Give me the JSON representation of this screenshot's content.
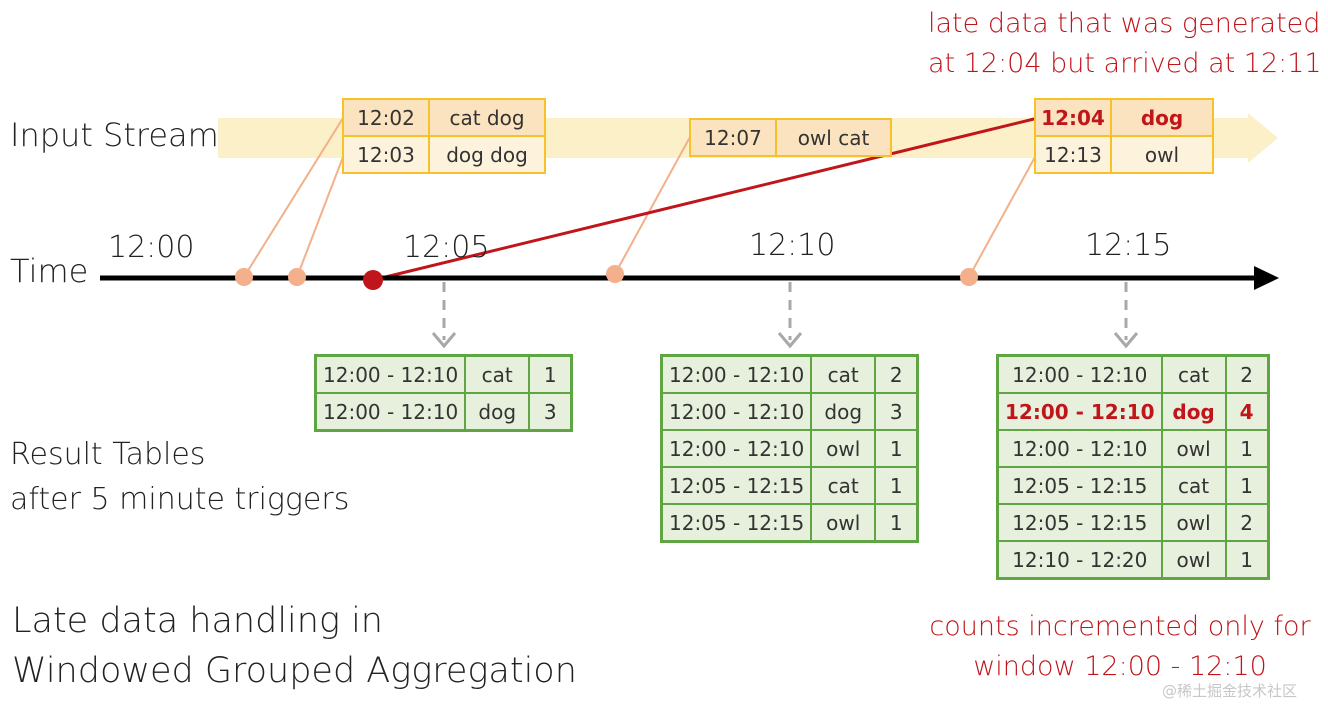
{
  "labels": {
    "input_stream": "Input Stream",
    "time": "Time",
    "result_line1": "Result Tables",
    "result_line2": "after 5 minute triggers",
    "title_line1": "Late data handling in",
    "title_line2": "Windowed Grouped Aggregation"
  },
  "annotations": {
    "late_line1": "late data that was generated",
    "late_line2": "at 12:04 but arrived at 12:11",
    "counts_line1": "counts incremented only for",
    "counts_line2": "window 12:00 - 12:10"
  },
  "timeline": {
    "ticks": [
      "12:00",
      "12:05",
      "12:10",
      "12:15"
    ]
  },
  "events": {
    "batch1": [
      {
        "time": "12:02",
        "words": "cat dog"
      },
      {
        "time": "12:03",
        "words": "dog dog"
      }
    ],
    "batch2": [
      {
        "time": "12:07",
        "words": "owl cat"
      }
    ],
    "batch3": [
      {
        "time": "12:04",
        "words": "dog",
        "late": true
      },
      {
        "time": "12:13",
        "words": "owl"
      }
    ]
  },
  "results": {
    "t1205": [
      [
        "12:00 - 12:10",
        "cat",
        "1"
      ],
      [
        "12:00 - 12:10",
        "dog",
        "3"
      ]
    ],
    "t1210": [
      [
        "12:00 - 12:10",
        "cat",
        "2"
      ],
      [
        "12:00 - 12:10",
        "dog",
        "3"
      ],
      [
        "12:00 - 12:10",
        "owl",
        "1"
      ],
      [
        "12:05 - 12:15",
        "cat",
        "1"
      ],
      [
        "12:05 - 12:15",
        "owl",
        "1"
      ]
    ],
    "t1215": [
      [
        "12:00 - 12:10",
        "cat",
        "2"
      ],
      [
        "12:00 - 12:10",
        "dog",
        "4"
      ],
      [
        "12:00 - 12:10",
        "owl",
        "1"
      ],
      [
        "12:05 - 12:15",
        "cat",
        "1"
      ],
      [
        "12:05 - 12:15",
        "owl",
        "2"
      ],
      [
        "12:10 - 12:20",
        "owl",
        "1"
      ]
    ]
  },
  "watermark": "@稀土掘金技术社区",
  "colors": {
    "late_red": "#c0151b",
    "event_dot": "#f3b08a",
    "event_border": "#f6c12a",
    "result_border": "#5fa543",
    "result_fill": "#e6f0dc",
    "stream_band": "#fcf0c9"
  }
}
